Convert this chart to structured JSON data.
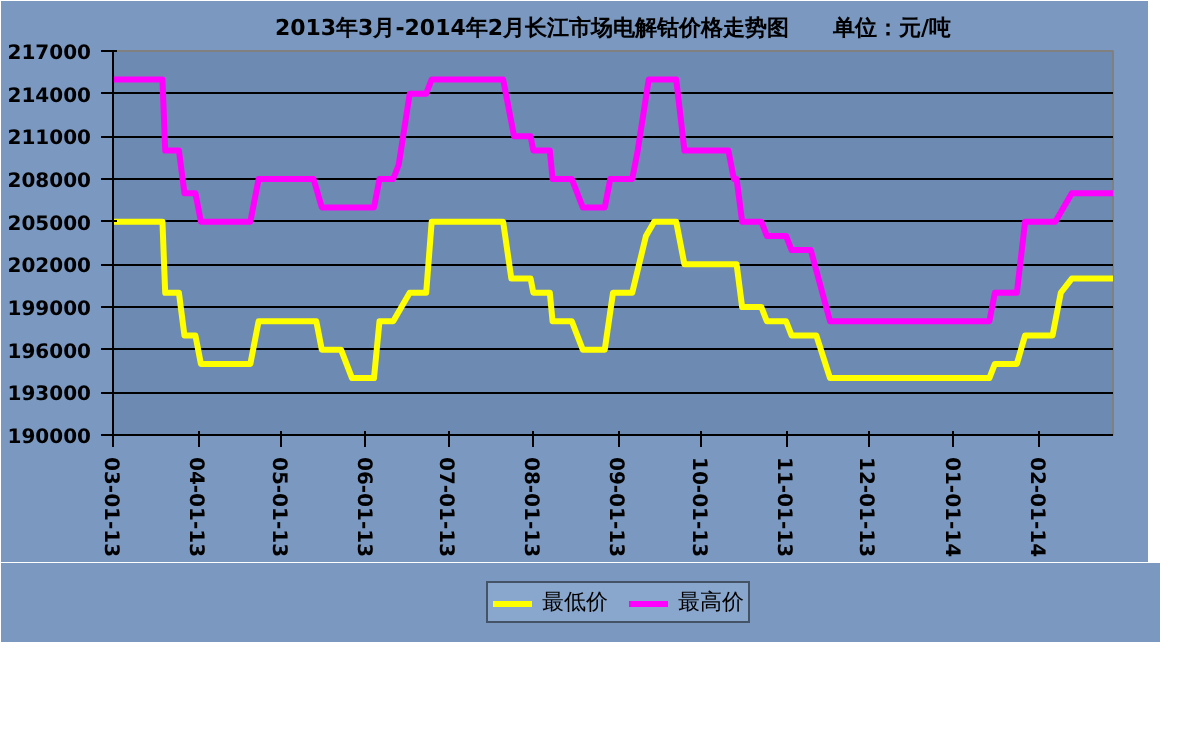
{
  "chart_data": {
    "type": "line",
    "title": "2013年3月-2014年2月长江市场电解钴价格走势图　　单位：元/吨",
    "xlim": [
      "2013-03-01",
      "2014-02-28"
    ],
    "xticks": [
      {
        "value": "2013-03-01",
        "label": "03-01-13"
      },
      {
        "value": "2013-04-01",
        "label": "04-01-13"
      },
      {
        "value": "2013-05-01",
        "label": "05-01-13"
      },
      {
        "value": "2013-06-01",
        "label": "06-01-13"
      },
      {
        "value": "2013-07-01",
        "label": "07-01-13"
      },
      {
        "value": "2013-08-01",
        "label": "08-01-13"
      },
      {
        "value": "2013-09-01",
        "label": "09-01-13"
      },
      {
        "value": "2013-10-01",
        "label": "10-01-13"
      },
      {
        "value": "2013-11-01",
        "label": "11-01-13"
      },
      {
        "value": "2013-12-01",
        "label": "12-01-13"
      },
      {
        "value": "2014-01-01",
        "label": "01-01-14"
      },
      {
        "value": "2014-02-01",
        "label": "02-01-14"
      }
    ],
    "ylim": [
      190000,
      217000
    ],
    "yticks": [
      190000,
      193000,
      196000,
      199000,
      202000,
      205000,
      208000,
      211000,
      214000,
      217000
    ],
    "grid": "y",
    "legend": "bottom",
    "marker": "none",
    "line_style": "solid",
    "series": [
      {
        "name": "最低价",
        "color": "#ffff00",
        "x": [
          "2013-03-01",
          "2013-03-19",
          "2013-03-20",
          "2013-03-25",
          "2013-03-27",
          "2013-03-31",
          "2013-04-02",
          "2013-04-20",
          "2013-04-23",
          "2013-05-14",
          "2013-05-16",
          "2013-05-23",
          "2013-05-27",
          "2013-06-04",
          "2013-06-06",
          "2013-06-11",
          "2013-06-14",
          "2013-06-17",
          "2013-06-23",
          "2013-06-25",
          "2013-07-21",
          "2013-07-24",
          "2013-07-31",
          "2013-08-01",
          "2013-08-07",
          "2013-08-08",
          "2013-08-15",
          "2013-08-19",
          "2013-08-27",
          "2013-08-30",
          "2013-09-06",
          "2013-09-11",
          "2013-09-14",
          "2013-09-22",
          "2013-09-25",
          "2013-10-14",
          "2013-10-16",
          "2013-10-23",
          "2013-10-25",
          "2013-11-01",
          "2013-11-03",
          "2013-11-12",
          "2013-11-17",
          "2014-01-14",
          "2014-01-16",
          "2014-01-24",
          "2014-01-27",
          "2014-02-06",
          "2014-02-09",
          "2014-02-13",
          "2014-02-28"
        ],
        "values": [
          205000,
          205000,
          200000,
          200000,
          197000,
          197000,
          195000,
          195000,
          198000,
          198000,
          196000,
          196000,
          194000,
          194000,
          198000,
          198000,
          199000,
          200000,
          200000,
          205000,
          205000,
          201000,
          201000,
          200000,
          200000,
          198000,
          198000,
          196000,
          196000,
          200000,
          200000,
          204000,
          205000,
          205000,
          202000,
          202000,
          199000,
          199000,
          198000,
          198000,
          197000,
          197000,
          194000,
          194000,
          195000,
          195000,
          197000,
          197000,
          200000,
          201000,
          201000
        ]
      },
      {
        "name": "最高价",
        "color": "#ff00ff",
        "x": [
          "2013-03-01",
          "2013-03-19",
          "2013-03-20",
          "2013-03-25",
          "2013-03-27",
          "2013-03-31",
          "2013-04-02",
          "2013-04-20",
          "2013-04-23",
          "2013-05-13",
          "2013-05-16",
          "2013-06-04",
          "2013-06-06",
          "2013-06-11",
          "2013-06-13",
          "2013-06-17",
          "2013-06-23",
          "2013-06-25",
          "2013-07-21",
          "2013-07-25",
          "2013-07-31",
          "2013-08-01",
          "2013-08-07",
          "2013-08-08",
          "2013-08-15",
          "2013-08-19",
          "2013-08-27",
          "2013-08-29",
          "2013-09-06",
          "2013-09-08",
          "2013-09-12",
          "2013-09-22",
          "2013-09-25",
          "2013-10-11",
          "2013-10-13",
          "2013-10-14",
          "2013-10-16",
          "2013-10-23",
          "2013-10-25",
          "2013-11-01",
          "2013-11-03",
          "2013-11-10",
          "2013-11-17",
          "2014-01-14",
          "2014-01-16",
          "2014-01-24",
          "2014-01-27",
          "2014-02-07",
          "2014-02-10",
          "2014-02-13",
          "2014-02-28"
        ],
        "values": [
          215000,
          215000,
          210000,
          210000,
          207000,
          207000,
          205000,
          205000,
          208000,
          208000,
          206000,
          206000,
          208000,
          208000,
          209000,
          214000,
          214000,
          215000,
          215000,
          211000,
          211000,
          210000,
          210000,
          208000,
          208000,
          206000,
          206000,
          208000,
          208000,
          210000,
          215000,
          215000,
          210000,
          210000,
          208000,
          208000,
          205000,
          205000,
          204000,
          204000,
          203000,
          203000,
          198000,
          198000,
          200000,
          200000,
          205000,
          205000,
          206000,
          207000,
          207000
        ]
      }
    ]
  }
}
